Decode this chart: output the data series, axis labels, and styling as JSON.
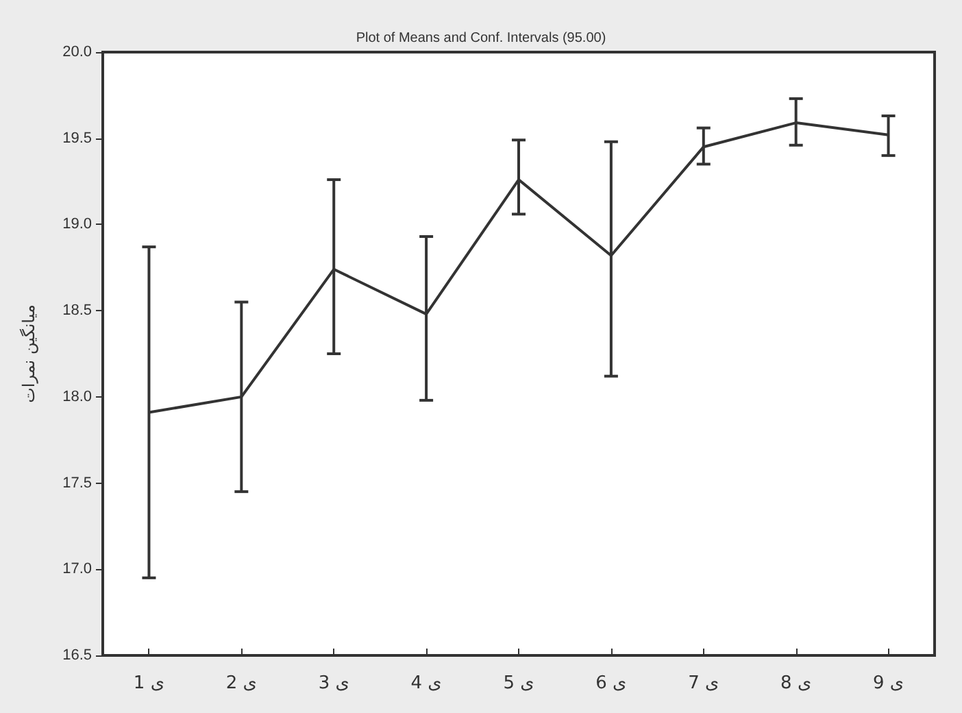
{
  "chart_data": {
    "type": "line",
    "title": "Plot of Means and Conf. Intervals (95.00)",
    "ylabel": "میانگین نمرات",
    "categories": [
      "ی 1",
      "ی 2",
      "ی 3",
      "ی 4",
      "ی 5",
      "ی 6",
      "ی 7",
      "ی 8",
      "ی 9"
    ],
    "series": [
      {
        "color": "#333333",
        "values": [
          17.91,
          18.0,
          18.74,
          18.48,
          19.26,
          18.82,
          19.45,
          19.59,
          19.52
        ],
        "errors": [
          [
            16.95,
            18.87
          ],
          [
            17.45,
            18.55
          ],
          [
            18.25,
            19.26
          ],
          [
            17.98,
            18.93
          ],
          [
            19.06,
            19.49
          ],
          [
            18.12,
            19.48
          ],
          [
            19.35,
            19.56
          ],
          [
            19.46,
            19.73
          ],
          [
            19.4,
            19.63
          ]
        ]
      }
    ],
    "ylim": [
      16.5,
      20.0
    ],
    "yticks": [
      {
        "value": 16.5,
        "label": "16.5"
      },
      {
        "value": 17,
        "label": "17.0"
      },
      {
        "value": 17.5,
        "label": "17.5"
      },
      {
        "value": 18,
        "label": "18.0"
      },
      {
        "value": 18.5,
        "label": "18.5"
      },
      {
        "value": 19,
        "label": "19.0"
      },
      {
        "value": 19.5,
        "label": "19.5"
      },
      {
        "value": 20,
        "label": "20.0"
      }
    ],
    "grid": false,
    "legend": false,
    "marker": "none",
    "line_style": "solid"
  }
}
